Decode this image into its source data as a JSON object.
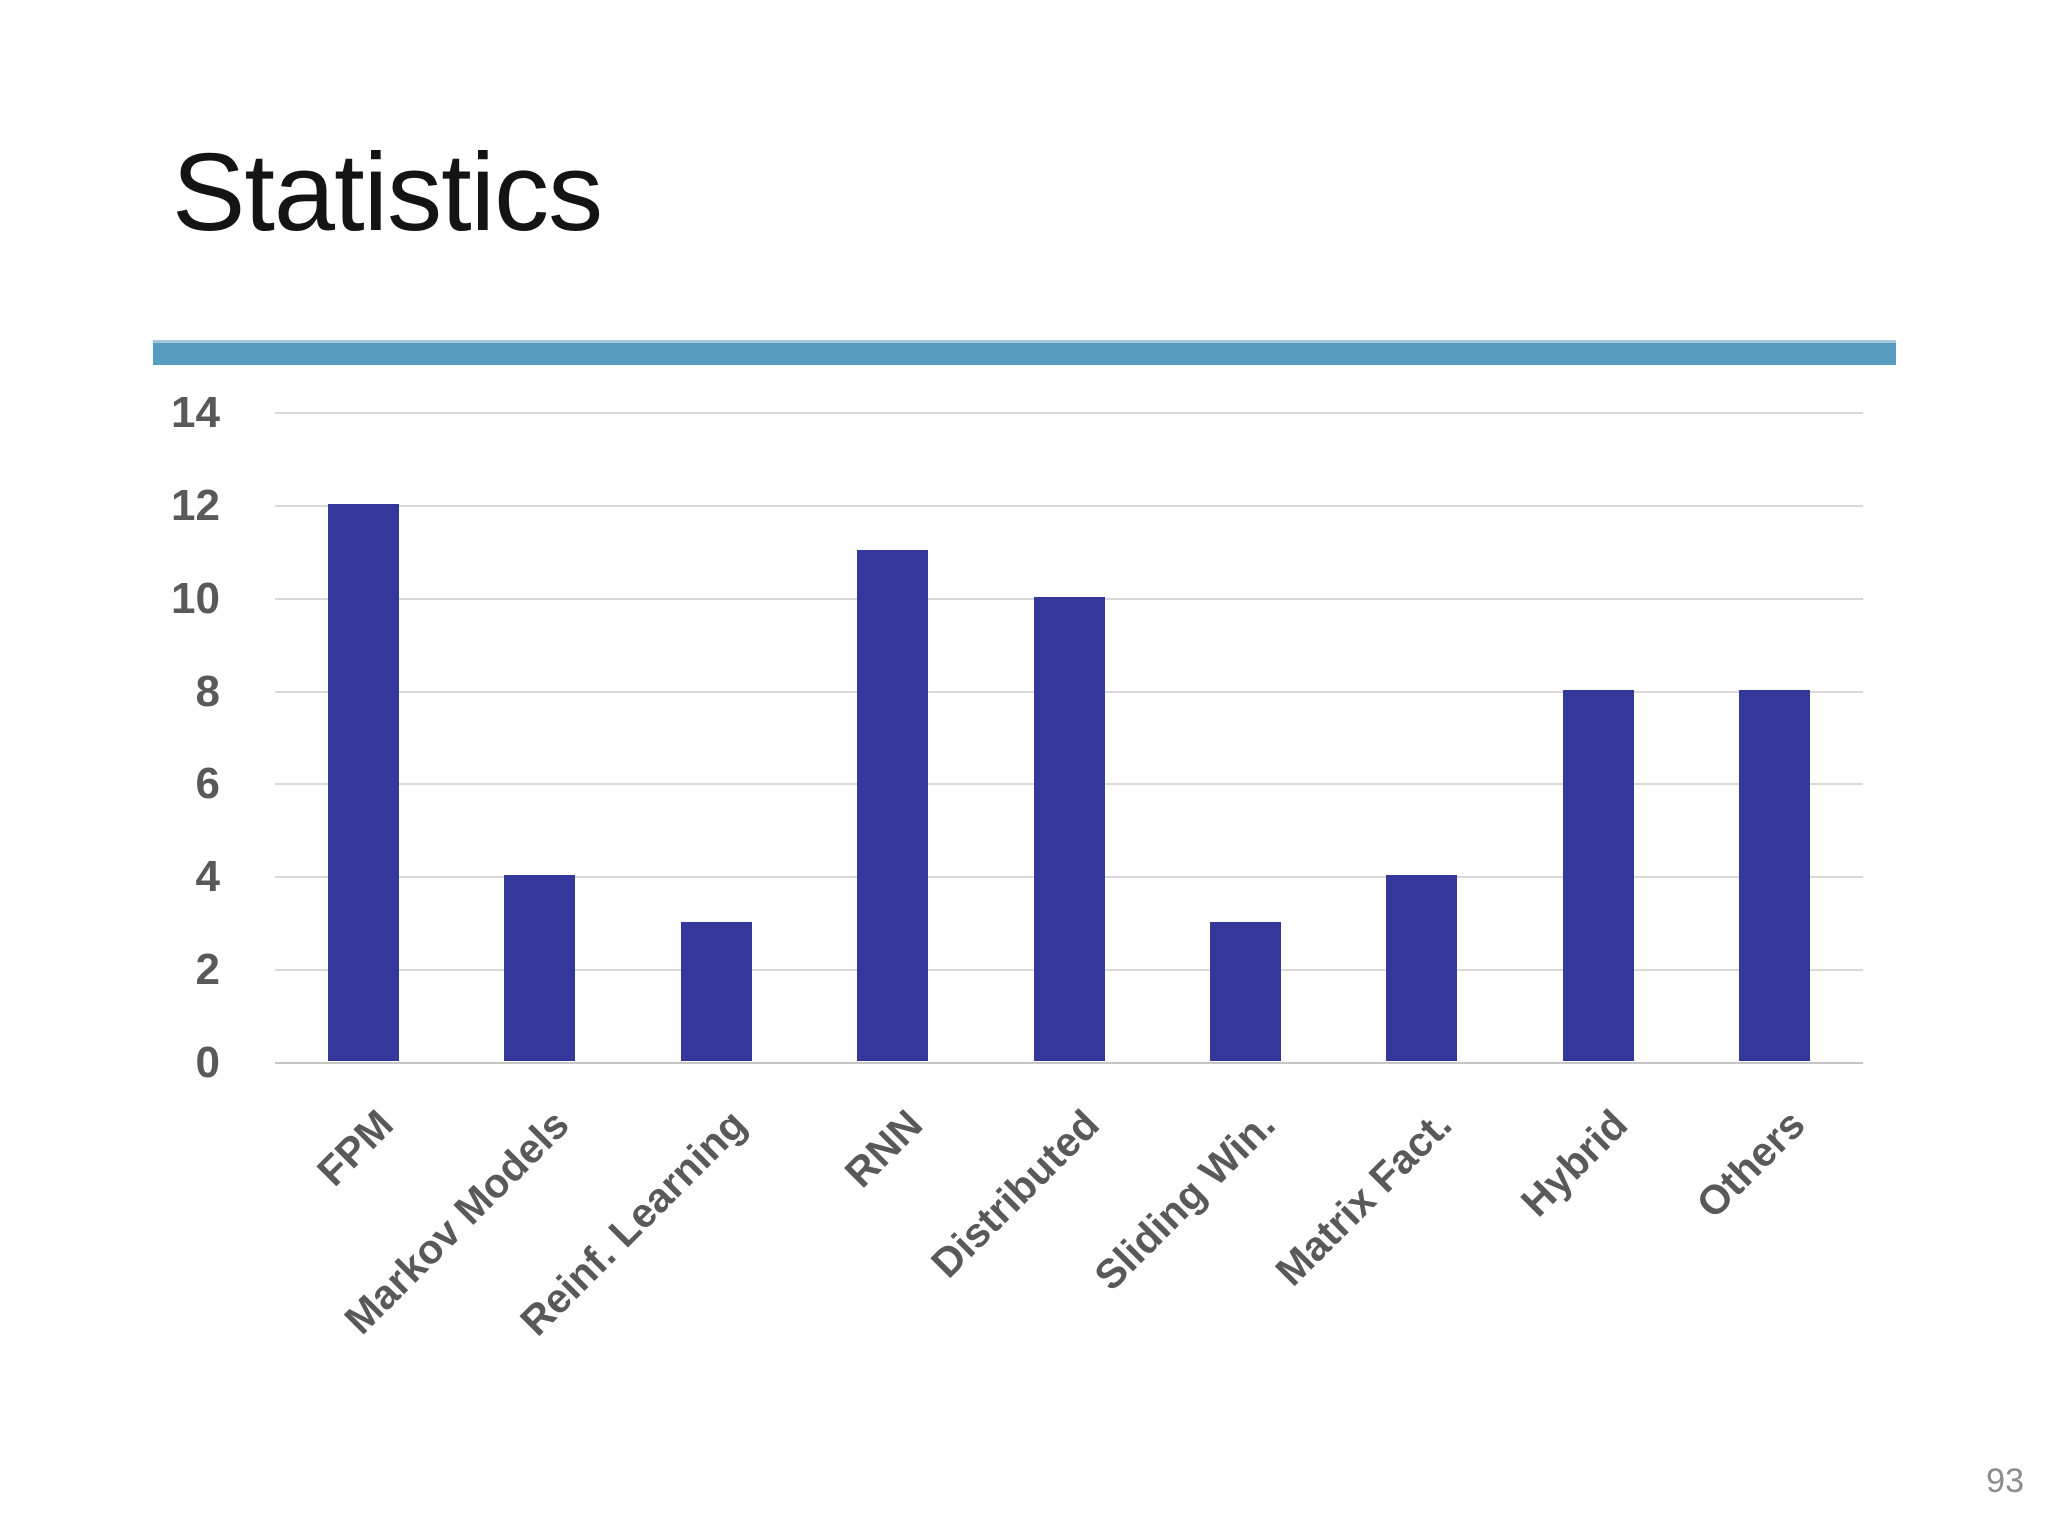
{
  "slide": {
    "title": "Statistics",
    "page_number": "93"
  },
  "theme": {
    "accent_teal": "#569DBF",
    "accent_teal_light": "#A5C8DC",
    "bar_color": "#34389B",
    "grid_color": "#D9D9D9",
    "label_color": "#595959",
    "title_color": "#141414",
    "page_number_color": "#8C8C8C"
  },
  "chart_data": {
    "type": "bar",
    "categories": [
      "FPM",
      "Markov Models",
      "Reinf. Learning",
      "RNN",
      "Distributed",
      "Sliding Win.",
      "Matrix Fact.",
      "Hybrid",
      "Others"
    ],
    "values": [
      12,
      4,
      3,
      11,
      10,
      3,
      4,
      8,
      8
    ],
    "title": "",
    "xlabel": "",
    "ylabel": "",
    "ylim": [
      0,
      14
    ],
    "yticks": [
      0,
      2,
      4,
      6,
      8,
      10,
      12,
      14
    ],
    "grid": true,
    "legend_position": "none",
    "x_label_rotation_deg": 45,
    "bar_color": "#34389B"
  }
}
